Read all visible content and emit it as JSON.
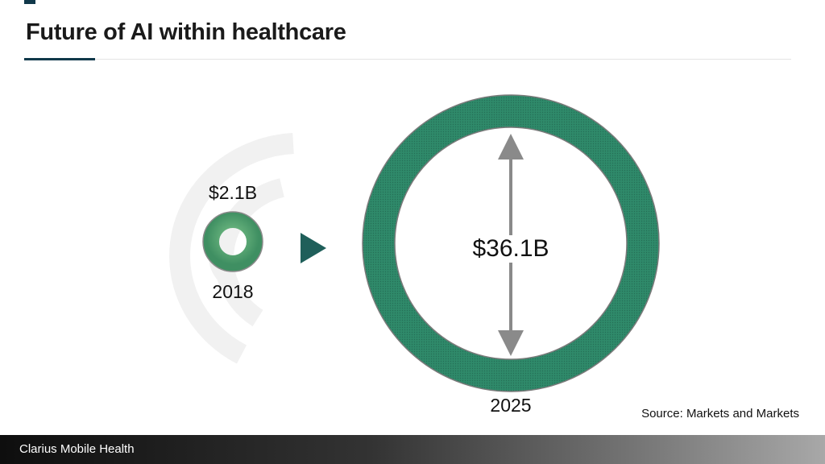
{
  "slide": {
    "title": "Future of AI within healthcare"
  },
  "markets": [
    {
      "year": "2018",
      "value_label": "$2.1B",
      "value_billions": 2.1
    },
    {
      "year": "2025",
      "value_label": "$36.1B",
      "value_billions": 36.1
    }
  ],
  "source": "Source: Markets and Markets",
  "footer": {
    "company": "Clarius Mobile Health"
  },
  "colors": {
    "ring_fill": "#2f8a6a",
    "small_ring_fill": "#4ca370",
    "arrow": "#1f5f5a",
    "accent": "#10384a",
    "measure_arrow": "#8a8a8a"
  },
  "icons": {
    "growth_arrow": "triangle-right-icon",
    "measure_arrow": "double-headed-vertical-arrow-icon",
    "background_decoration": "concentric-arcs-icon"
  }
}
